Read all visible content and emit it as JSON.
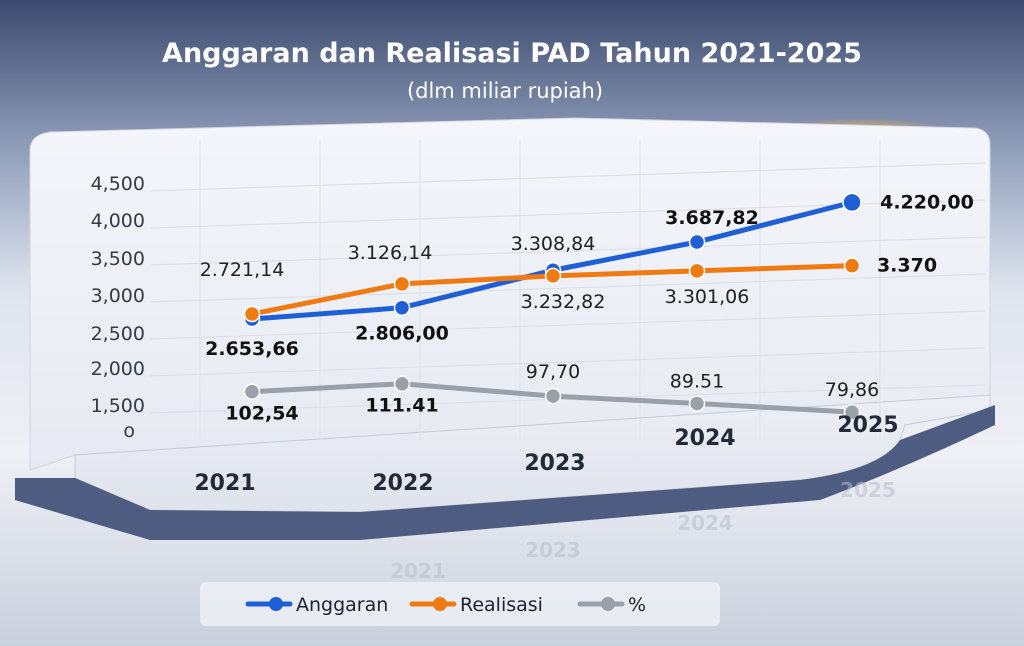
{
  "chart_data": {
    "type": "line",
    "title": "Anggaran dan Realisasi PAD Tahun 2021-2025",
    "subtitle": "(dlm miliar rupiah)",
    "categories": [
      "2021",
      "2022",
      "2023",
      "2024",
      "2025"
    ],
    "y_ticks": [
      "o",
      "1,500",
      "2,000",
      "2,500",
      "3,000",
      "3,500",
      "4,000",
      "4,500"
    ],
    "ylim": [
      1500,
      4500
    ],
    "grid": true,
    "legend_position": "bottom",
    "series": [
      {
        "name": "Anggaran",
        "color": "#1f5fd6",
        "values": [
          2653.66,
          2806.0,
          3308.84,
          3687.82,
          4220.0
        ],
        "labels": [
          "2.653,66",
          "2.806,00",
          "3.308,84",
          "3.687,82",
          "4.220,00"
        ]
      },
      {
        "name": "Realisasi",
        "color": "#f07a12",
        "values": [
          2721.14,
          3126.14,
          3232.82,
          3301.06,
          3370
        ],
        "labels": [
          "2.721,14",
          "3.126,14",
          "3.232,82",
          "3.301,06",
          "3.370"
        ]
      },
      {
        "name": "%",
        "color": "#9aa0aa",
        "values": [
          102.54,
          111.41,
          97.7,
          89.51,
          79.86
        ],
        "labels": [
          "102,54",
          "111.41",
          "97,70",
          "89.51",
          "79,86"
        ]
      }
    ]
  }
}
